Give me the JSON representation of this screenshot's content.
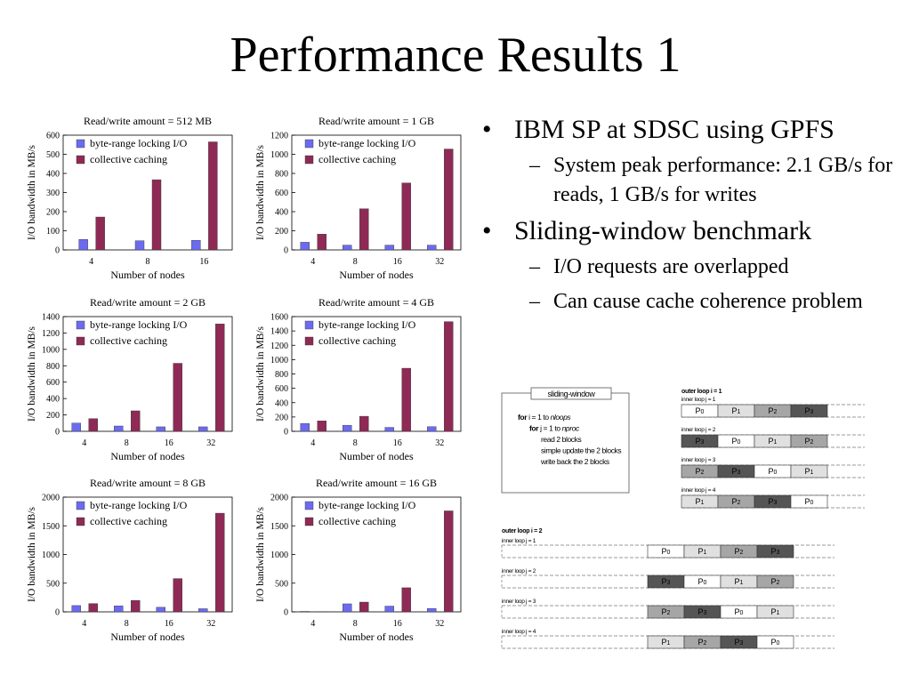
{
  "slide": {
    "title": "Performance Results 1",
    "bullets": [
      {
        "text": "IBM SP at SDSC using GPFS",
        "subs": [
          "System peak performance: 2.1 GB/s for reads, 1 GB/s for writes"
        ]
      },
      {
        "text": "Sliding-window benchmark",
        "subs": [
          "I/O requests are overlapped",
          "Can cause cache coherence problem"
        ]
      }
    ]
  },
  "colors": {
    "byte_range": "#6b6bf0",
    "collective": "#8e2a55",
    "p_light": "#e0e0e0",
    "p_mid": "#a6a6a6",
    "p_dark": "#555555"
  },
  "chart_data": [
    {
      "type": "bar",
      "title": "Read/write amount = 512 MB",
      "xlabel": "Number of nodes",
      "ylabel": "I/O bandwidth in MB/s",
      "categories": [
        "4",
        "8",
        "16"
      ],
      "ylim": [
        0,
        600
      ],
      "yticks": [
        0,
        100,
        200,
        300,
        400,
        500,
        600
      ],
      "legend": "top-left",
      "series": [
        {
          "name": "byte-range locking I/O",
          "values": [
            55,
            48,
            50
          ]
        },
        {
          "name": "collective caching",
          "values": [
            172,
            367,
            565
          ]
        }
      ]
    },
    {
      "type": "bar",
      "title": "Read/write amount = 1 GB",
      "xlabel": "Number of nodes",
      "ylabel": "I/O bandwidth in MB/s",
      "categories": [
        "4",
        "8",
        "16",
        "32"
      ],
      "ylim": [
        0,
        1200
      ],
      "yticks": [
        0,
        200,
        400,
        600,
        800,
        1000,
        1200
      ],
      "legend": "top-left",
      "series": [
        {
          "name": "byte-range locking I/O",
          "values": [
            80,
            50,
            50,
            50
          ]
        },
        {
          "name": "collective caching",
          "values": [
            165,
            430,
            700,
            1055
          ]
        }
      ]
    },
    {
      "type": "bar",
      "title": "Read/write amount = 2 GB",
      "xlabel": "Number of nodes",
      "ylabel": "I/O bandwidth in MB/s",
      "categories": [
        "4",
        "8",
        "16",
        "32"
      ],
      "ylim": [
        0,
        1400
      ],
      "yticks": [
        0,
        200,
        400,
        600,
        800,
        1000,
        1200,
        1400
      ],
      "legend": "top-left",
      "series": [
        {
          "name": "byte-range locking I/O",
          "values": [
            100,
            65,
            55,
            55
          ]
        },
        {
          "name": "collective caching",
          "values": [
            155,
            250,
            830,
            1310
          ]
        }
      ]
    },
    {
      "type": "bar",
      "title": "Read/write amount = 4 GB",
      "xlabel": "Number of nodes",
      "ylabel": "I/O bandwidth in MB/s",
      "categories": [
        "4",
        "8",
        "16",
        "32"
      ],
      "ylim": [
        0,
        1600
      ],
      "yticks": [
        0,
        200,
        400,
        600,
        800,
        1000,
        1200,
        1400,
        1600
      ],
      "legend": "top-left",
      "series": [
        {
          "name": "byte-range locking I/O",
          "values": [
            110,
            85,
            55,
            65
          ]
        },
        {
          "name": "collective caching",
          "values": [
            145,
            210,
            880,
            1530
          ]
        }
      ]
    },
    {
      "type": "bar",
      "title": "Read/write amount = 8 GB",
      "xlabel": "Number of nodes",
      "ylabel": "I/O bandwidth in MB/s",
      "categories": [
        "4",
        "8",
        "16",
        "32"
      ],
      "ylim": [
        0,
        2000
      ],
      "yticks": [
        0,
        500,
        1000,
        1500,
        2000
      ],
      "legend": "top-left",
      "series": [
        {
          "name": "byte-range locking I/O",
          "values": [
            110,
            105,
            80,
            55
          ]
        },
        {
          "name": "collective caching",
          "values": [
            145,
            200,
            580,
            1720
          ]
        }
      ]
    },
    {
      "type": "bar",
      "title": "Read/write amount = 16 GB",
      "xlabel": "Number of nodes",
      "ylabel": "I/O bandwidth in MB/s",
      "categories": [
        "4",
        "8",
        "16",
        "32"
      ],
      "ylim": [
        0,
        2000
      ],
      "yticks": [
        0,
        500,
        1000,
        1500,
        2000
      ],
      "legend": "top-left",
      "series": [
        {
          "name": "byte-range locking I/O",
          "values": [
            8,
            140,
            100,
            60
          ]
        },
        {
          "name": "collective caching",
          "values": [
            5,
            170,
            420,
            1760
          ]
        }
      ]
    }
  ],
  "diagram": {
    "code_title": "sliding-window",
    "code_lines": [
      {
        "kw": "for",
        "txt": "i = 1 to",
        "var": "nloops"
      },
      {
        "kw": "for",
        "txt": "j = 1 to",
        "var": "nproc"
      },
      {
        "kw": "",
        "txt": "read 2 blocks",
        "var": ""
      },
      {
        "kw": "",
        "txt": "simple update the 2 blocks",
        "var": ""
      },
      {
        "kw": "",
        "txt": "write back the 2 blocks",
        "var": ""
      }
    ],
    "outer1": {
      "label": "outer loop i = 1",
      "rows": [
        {
          "label": "inner loop j = 1",
          "cells": [
            "P0",
            "P1",
            "P2",
            "P3"
          ],
          "shades": [
            "white",
            "light",
            "mid",
            "dark"
          ]
        },
        {
          "label": "inner loop j = 2",
          "cells": [
            "P3",
            "P0",
            "P1",
            "P2"
          ],
          "shades": [
            "dark",
            "white",
            "light",
            "mid"
          ]
        },
        {
          "label": "inner loop j = 3",
          "cells": [
            "P2",
            "P3",
            "P0",
            "P1"
          ],
          "shades": [
            "mid",
            "dark",
            "white",
            "light"
          ]
        },
        {
          "label": "inner loop j = 4",
          "cells": [
            "P1",
            "P2",
            "P3",
            "P0"
          ],
          "shades": [
            "light",
            "mid",
            "dark",
            "white"
          ]
        }
      ]
    },
    "outer2": {
      "label": "outer loop i = 2",
      "rows": [
        {
          "label": "inner loop j = 1",
          "cells": [
            "P0",
            "P1",
            "P2",
            "P3"
          ],
          "shades": [
            "white",
            "light",
            "mid",
            "dark"
          ]
        },
        {
          "label": "inner loop j = 2",
          "cells": [
            "P3",
            "P0",
            "P1",
            "P2"
          ],
          "shades": [
            "dark",
            "white",
            "light",
            "mid"
          ]
        },
        {
          "label": "inner loop j = 3",
          "cells": [
            "P2",
            "P3",
            "P0",
            "P1"
          ],
          "shades": [
            "mid",
            "dark",
            "white",
            "light"
          ]
        },
        {
          "label": "inner loop j = 4",
          "cells": [
            "P1",
            "P2",
            "P3",
            "P0"
          ],
          "shades": [
            "light",
            "mid",
            "dark",
            "white"
          ]
        }
      ]
    }
  }
}
